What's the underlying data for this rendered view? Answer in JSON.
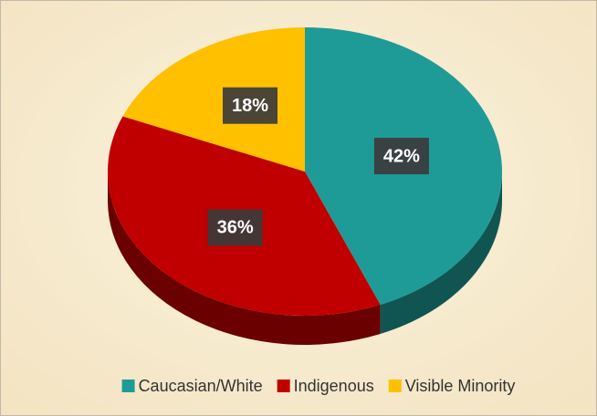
{
  "chart_data": {
    "type": "pie",
    "categories": [
      "Caucasian/White",
      "Indigenous",
      "Visible Minority"
    ],
    "values": [
      42,
      36,
      18
    ],
    "value_labels": [
      "42%",
      "36%",
      "18%"
    ],
    "colors": [
      "#1f9b97",
      "#c00000",
      "#ffc000"
    ],
    "legend": "bottom"
  }
}
